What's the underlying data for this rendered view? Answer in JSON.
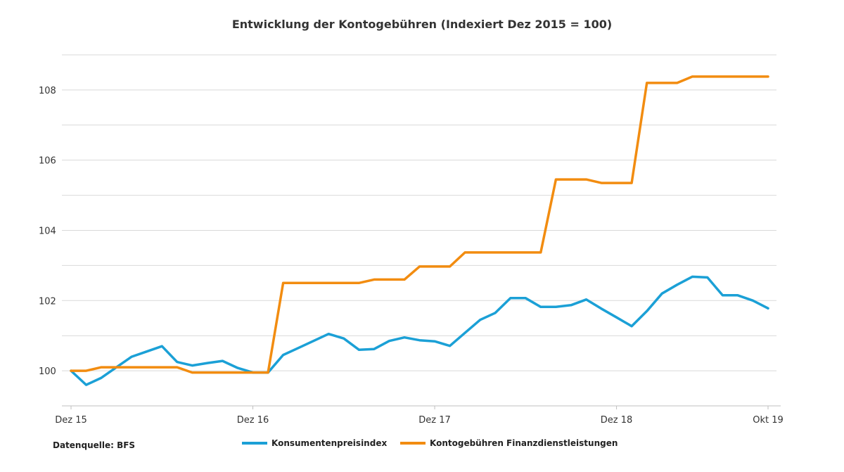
{
  "chart_data": {
    "type": "line",
    "title": "Entwicklung der Kontogebühren (Indexiert Dez 2015 = 100)",
    "xlabel": "",
    "ylabel": "",
    "x_ticks": [
      "Dez 15",
      "Dez 16",
      "Dez 17",
      "Dez 18",
      "Okt 19"
    ],
    "x_tick_index": [
      0,
      12,
      24,
      36,
      46
    ],
    "y_ticks": [
      100,
      102,
      104,
      106,
      108
    ],
    "ylim": [
      99,
      109.2
    ],
    "grid": true,
    "source": "Datenquelle: BFS",
    "colors": {
      "kpi": "#1ba0d6",
      "fees": "#f28c10",
      "grid": "#d9d9d9",
      "axis": "#bfbfbf"
    },
    "series": [
      {
        "name": "Konsumentenpreisindex",
        "color": "#1ba0d6",
        "values": [
          100.0,
          99.6,
          99.8,
          100.1,
          100.4,
          100.55,
          100.7,
          100.25,
          100.15,
          100.22,
          100.28,
          100.08,
          99.95,
          99.95,
          100.45,
          100.65,
          100.85,
          101.05,
          100.92,
          100.6,
          100.62,
          100.85,
          100.95,
          100.87,
          100.84,
          100.71,
          101.08,
          101.45,
          101.65,
          102.07,
          102.07,
          101.82,
          101.82,
          101.87,
          102.03,
          101.77,
          101.52,
          101.27,
          101.7,
          102.2,
          102.45,
          102.68,
          102.66,
          102.15,
          102.15,
          102.0,
          101.78
        ]
      },
      {
        "name": "Kontogebühren Finanzdienstleistungen",
        "color": "#f28c10",
        "values": [
          100.0,
          100.0,
          100.1,
          100.1,
          100.1,
          100.1,
          100.1,
          100.1,
          99.95,
          99.95,
          99.95,
          99.95,
          99.95,
          99.95,
          102.5,
          102.5,
          102.5,
          102.5,
          102.5,
          102.5,
          102.6,
          102.6,
          102.6,
          102.97,
          102.97,
          102.97,
          103.37,
          103.37,
          103.37,
          103.37,
          103.37,
          103.37,
          105.45,
          105.45,
          105.45,
          105.35,
          105.35,
          105.35,
          108.2,
          108.2,
          108.2,
          108.38,
          108.38,
          108.38,
          108.38,
          108.38,
          108.38
        ]
      }
    ]
  }
}
